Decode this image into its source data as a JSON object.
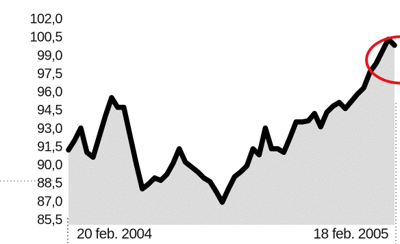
{
  "chart_data": {
    "type": "area",
    "title": "",
    "xlabel": "",
    "ylabel": "",
    "y_ticks": [
      "102,0",
      "100,5",
      "99,0",
      "97,5",
      "96,0",
      "94,5",
      "93,0",
      "91,5",
      "90,0",
      "88,5",
      "87,0",
      "85,5"
    ],
    "ylim": [
      85.5,
      102.0
    ],
    "x_tick_labels": [
      "20 feb. 2004",
      "18 feb. 2005"
    ],
    "x": [
      "2004-02-20",
      "2004-02-27",
      "2004-03-05",
      "2004-03-12",
      "2004-03-19",
      "2004-03-26",
      "2004-04-02",
      "2004-04-09",
      "2004-04-16",
      "2004-04-23",
      "2004-04-30",
      "2004-05-07",
      "2004-05-14",
      "2004-05-21",
      "2004-05-28",
      "2004-06-04",
      "2004-06-11",
      "2004-06-18",
      "2004-06-25",
      "2004-07-02",
      "2004-07-09",
      "2004-07-16",
      "2004-07-23",
      "2004-07-30",
      "2004-08-06",
      "2004-08-13",
      "2004-08-20",
      "2004-08-27",
      "2004-09-03",
      "2004-09-10",
      "2004-09-17",
      "2004-09-24",
      "2004-10-01",
      "2004-10-08",
      "2004-10-15",
      "2004-10-22",
      "2004-10-29",
      "2004-11-05",
      "2004-11-12",
      "2004-11-19",
      "2004-11-26",
      "2004-12-03",
      "2004-12-10",
      "2004-12-17",
      "2004-12-24",
      "2004-12-31",
      "2005-01-07",
      "2005-01-14",
      "2005-01-21",
      "2005-01-28",
      "2005-02-04",
      "2005-02-11",
      "2005-02-18",
      "2005-02-25"
    ],
    "series": [
      {
        "values": [
          91.2,
          92.0,
          93.0,
          91.0,
          90.6,
          92.3,
          94.0,
          95.5,
          94.7,
          94.7,
          92.4,
          90.1,
          88.0,
          88.4,
          88.9,
          88.7,
          89.2,
          90.1,
          91.3,
          90.2,
          89.8,
          89.4,
          88.9,
          88.6,
          87.8,
          86.9,
          88.0,
          89.0,
          89.4,
          89.9,
          91.3,
          90.8,
          93.0,
          91.3,
          91.3,
          91.0,
          92.2,
          93.5,
          93.5,
          93.6,
          94.2,
          93.1,
          94.3,
          94.8,
          95.1,
          94.6,
          95.2,
          95.8,
          96.3,
          97.6,
          98.3,
          99.3,
          100.3,
          99.8
        ],
        "color": "#000000"
      }
    ],
    "annotation": {
      "type": "ellipse",
      "color": "#e8131d",
      "around_dates": [
        "2005-02-04",
        "2005-02-25"
      ]
    },
    "grid": false,
    "legend": "none"
  }
}
